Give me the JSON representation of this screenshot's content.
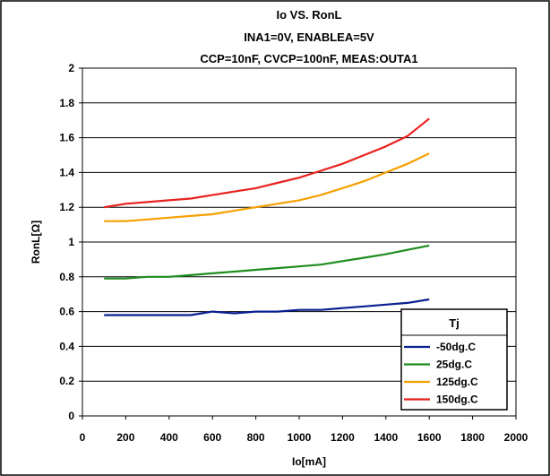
{
  "chart_data": {
    "type": "line",
    "title_lines": [
      "Io VS. RonL",
      "INA1=0V, ENABLEA=5V",
      "CCP=10nF, CVCP=100nF, MEAS:OUTA1"
    ],
    "xlabel": "Io[mA]",
    "ylabel": "RonL[Ω]",
    "xlim": [
      0,
      2000
    ],
    "ylim": [
      0,
      2
    ],
    "xticks": [
      0,
      200,
      400,
      600,
      800,
      1000,
      1200,
      1400,
      1600,
      1800,
      2000
    ],
    "yticks": [
      0,
      0.2,
      0.4,
      0.6,
      0.8,
      1,
      1.2,
      1.4,
      1.6,
      1.8,
      2
    ],
    "grid": "horizontal",
    "legend_title": "Tj",
    "legend_position": "bottom-right",
    "x": [
      100,
      200,
      300,
      400,
      500,
      600,
      700,
      800,
      900,
      1000,
      1100,
      1200,
      1300,
      1400,
      1500,
      1600
    ],
    "series": [
      {
        "name": "-50dg.C",
        "color": "#0a1f8f",
        "values": [
          0.58,
          0.58,
          0.58,
          0.58,
          0.58,
          0.6,
          0.59,
          0.6,
          0.6,
          0.61,
          0.61,
          0.62,
          0.63,
          0.64,
          0.65,
          0.67
        ]
      },
      {
        "name": "25dg.C",
        "color": "#1e8c1e",
        "values": [
          0.79,
          0.79,
          0.8,
          0.8,
          0.81,
          0.82,
          0.83,
          0.84,
          0.85,
          0.86,
          0.87,
          0.89,
          0.91,
          0.93,
          0.955,
          0.98
        ]
      },
      {
        "name": "125dg.C",
        "color": "#f5a000",
        "values": [
          1.12,
          1.12,
          1.13,
          1.14,
          1.15,
          1.16,
          1.18,
          1.2,
          1.22,
          1.24,
          1.27,
          1.31,
          1.35,
          1.4,
          1.45,
          1.51
        ]
      },
      {
        "name": "150dg.C",
        "color": "#e8231f",
        "values": [
          1.2,
          1.22,
          1.23,
          1.24,
          1.25,
          1.27,
          1.29,
          1.31,
          1.34,
          1.37,
          1.41,
          1.45,
          1.5,
          1.55,
          1.61,
          1.71
        ]
      }
    ]
  }
}
